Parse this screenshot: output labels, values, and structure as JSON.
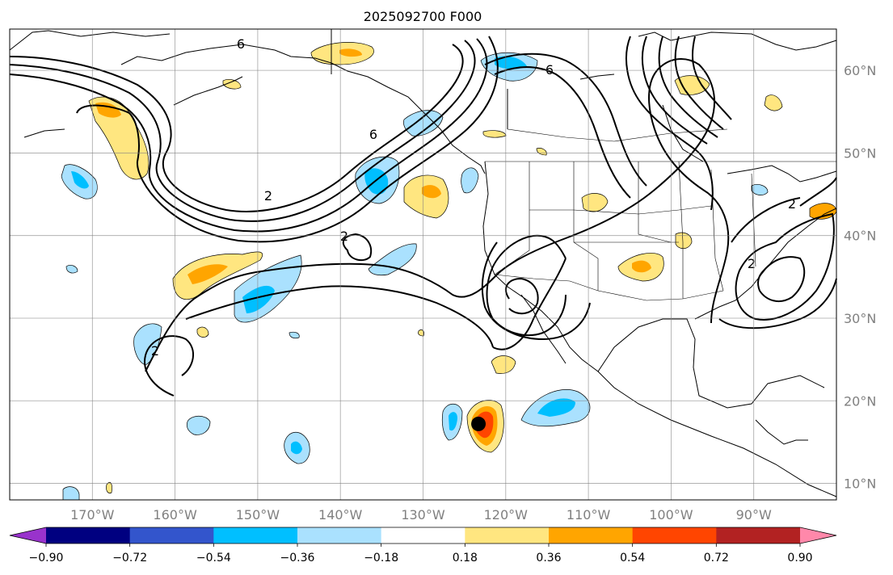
{
  "title": "2025092700 F000",
  "map": {
    "lon_ticks": [
      "170°W",
      "160°W",
      "150°W",
      "140°W",
      "130°W",
      "120°W",
      "110°W",
      "100°W",
      "90°W"
    ],
    "lat_ticks": [
      "60°N",
      "50°N",
      "40°N",
      "30°N",
      "20°N",
      "10°N"
    ],
    "gridlines": true,
    "extent": {
      "lon_min": -180,
      "lon_max": -80,
      "lat_min": 8,
      "lat_max": 65
    },
    "contour_labels": [
      "6",
      "6",
      "6",
      "2",
      "2",
      "2",
      "2",
      "2"
    ]
  },
  "colorbar": {
    "ticks": [
      "−0.90",
      "−0.72",
      "−0.54",
      "−0.36",
      "−0.18",
      "0.18",
      "0.36",
      "0.54",
      "0.72",
      "0.90"
    ],
    "colors": [
      "#9933cc",
      "#000080",
      "#3355cc",
      "#00bfff",
      "#aae1fe",
      "#ffffff",
      "#ffe680",
      "#ffa500",
      "#ff4500",
      "#b22222",
      "#ff88aa"
    ],
    "extend": "both"
  },
  "marker": {
    "lon": -123.3,
    "lat": 17.2,
    "color": "#000000"
  }
}
